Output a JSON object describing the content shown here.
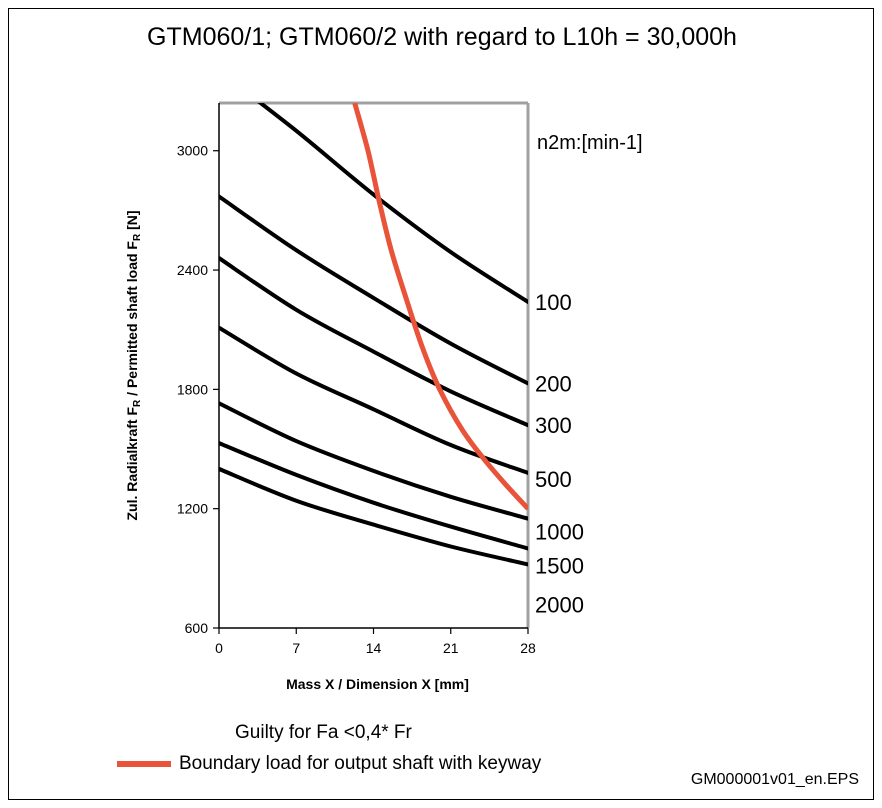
{
  "title": "GTM060/1; GTM060/2 with regard to L10h = 30,000h",
  "note": "Guilty for Fa <0,4* Fr",
  "legend": {
    "label": "Boundary load for output shaft with keyway",
    "color": "#e8533a"
  },
  "footer": "GM000001v01_en.EPS",
  "chart_data": {
    "type": "line",
    "title": "GTM060/1; GTM060/2 with regard to L10h = 30,000h",
    "xlabel": "Mass X / Dimension X [mm]",
    "ylabel_parts": {
      "main": "Zul. Radialkraft F",
      "sub1": "R",
      "mid": "  /  Permitted  shaft load  F",
      "sub2": "R",
      "end": "  [N]"
    },
    "series_unit_label": "n2m:[min-1]",
    "xlim": [
      0,
      28
    ],
    "ylim": [
      600,
      3240
    ],
    "xticks": [
      "0",
      "7",
      "14",
      "21",
      "28"
    ],
    "yticks": [
      "600",
      "1200",
      "1800",
      "2400",
      "3000"
    ],
    "grid": false,
    "series": [
      {
        "name": "100",
        "x": [
          0,
          7,
          14,
          21,
          28
        ],
        "values": [
          3400,
          3100,
          2780,
          2490,
          2240
        ]
      },
      {
        "name": "200",
        "x": [
          0,
          7,
          14,
          21,
          28
        ],
        "values": [
          2770,
          2500,
          2260,
          2030,
          1830
        ]
      },
      {
        "name": "300",
        "x": [
          0,
          7,
          14,
          21,
          28
        ],
        "values": [
          2460,
          2200,
          1990,
          1790,
          1620
        ]
      },
      {
        "name": "500",
        "x": [
          0,
          7,
          14,
          21,
          28
        ],
        "values": [
          2110,
          1880,
          1700,
          1520,
          1380
        ]
      },
      {
        "name": "1000",
        "x": [
          0,
          7,
          14,
          21,
          28
        ],
        "values": [
          1730,
          1540,
          1390,
          1260,
          1150
        ]
      },
      {
        "name": "1500",
        "x": [
          0,
          7,
          14,
          21,
          28
        ],
        "values": [
          1530,
          1370,
          1230,
          1110,
          1000
        ]
      },
      {
        "name": "2000",
        "x": [
          0,
          7,
          14,
          21,
          28
        ],
        "values": [
          1400,
          1240,
          1120,
          1010,
          920
        ]
      }
    ],
    "boundary": {
      "name": "Boundary load for output shaft with keyway",
      "x": [
        12.3,
        13.5,
        14.5,
        15.6,
        17,
        18.5,
        20,
        22,
        24,
        26,
        28
      ],
      "values": [
        3240,
        3000,
        2750,
        2500,
        2250,
        2000,
        1800,
        1600,
        1450,
        1320,
        1200
      ]
    }
  }
}
